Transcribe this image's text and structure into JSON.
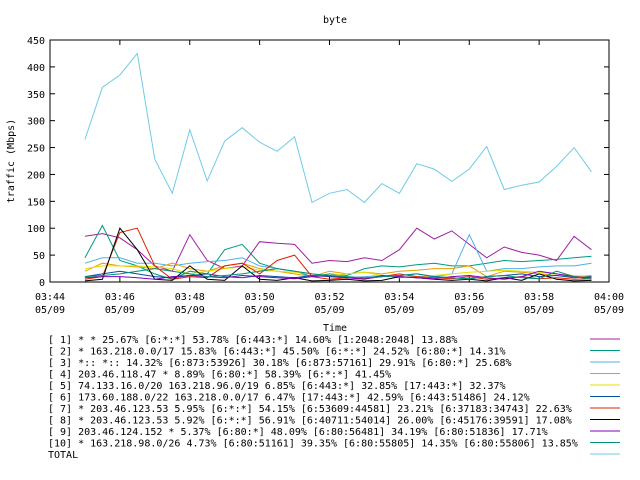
{
  "chart_data": {
    "type": "line",
    "title": "byte",
    "xlabel": "Time",
    "ylabel": "traffic (Mbps)",
    "ylim": [
      0,
      450
    ],
    "yticks": [
      0,
      50,
      100,
      150,
      200,
      250,
      300,
      350,
      400,
      450
    ],
    "grid": false,
    "x": [
      "03:45",
      "03:45:30",
      "03:46",
      "03:46:30",
      "03:47",
      "03:47:30",
      "03:48",
      "03:48:30",
      "03:49",
      "03:49:30",
      "03:50",
      "03:50:30",
      "03:51",
      "03:51:30",
      "03:52",
      "03:52:30",
      "03:53",
      "03:53:30",
      "03:54",
      "03:54:30",
      "03:55",
      "03:55:30",
      "03:56",
      "03:56:30",
      "03:57",
      "03:57:30",
      "03:58",
      "03:58:30",
      "03:59",
      "03:59:30"
    ],
    "xticks": [
      {
        "time": "03:44",
        "date": "05/09"
      },
      {
        "time": "03:46",
        "date": "05/09"
      },
      {
        "time": "03:48",
        "date": "05/09"
      },
      {
        "time": "03:50",
        "date": "05/09"
      },
      {
        "time": "03:52",
        "date": "05/09"
      },
      {
        "time": "03:54",
        "date": "05/09"
      },
      {
        "time": "03:56",
        "date": "05/09"
      },
      {
        "time": "03:58",
        "date": "05/09"
      },
      {
        "time": "04:00",
        "date": "05/09"
      }
    ],
    "series": [
      {
        "name": "[ 1] * * 25.67%  [6:*:*] 53.78% [6:443:*] 14.60% [1:2048:2048] 13.88%",
        "color": "#a020a0",
        "values": [
          85,
          90,
          82,
          60,
          30,
          20,
          88,
          40,
          25,
          30,
          75,
          72,
          70,
          35,
          40,
          38,
          45,
          40,
          60,
          100,
          80,
          95,
          70,
          45,
          65,
          55,
          50,
          40,
          85,
          60
        ]
      },
      {
        "name": "[ 2] * 163.218.0.0/17 15.83%  [6:443:*] 45.50% [6:*:*] 24.52% [6:80:*] 14.31%",
        "color": "#009a80",
        "values": [
          45,
          105,
          40,
          30,
          15,
          5,
          20,
          15,
          60,
          70,
          35,
          25,
          20,
          10,
          15,
          12,
          25,
          30,
          28,
          32,
          35,
          30,
          30,
          35,
          40,
          38,
          40,
          42,
          45,
          48
        ]
      },
      {
        "name": "[ 3] *:: *:: 14.32%  [6:873:53926] 30.18% [6:873:57161] 29.91% [6:80:*] 25.68%",
        "color": "#50b0e8",
        "values": [
          35,
          45,
          45,
          35,
          35,
          30,
          35,
          38,
          40,
          45,
          30,
          25,
          20,
          15,
          10,
          8,
          10,
          12,
          8,
          10,
          10,
          15,
          88,
          20,
          25,
          25,
          28,
          30,
          30,
          35
        ]
      },
      {
        "name": "[ 4] 203.46.118.47 * 8.89%  [6:80:*] 58.39% [6:*:*] 41.45%",
        "color": "#e0a000",
        "values": [
          20,
          35,
          30,
          28,
          25,
          35,
          25,
          20,
          30,
          35,
          25,
          20,
          15,
          10,
          20,
          15,
          18,
          15,
          20,
          22,
          25,
          25,
          30,
          10,
          20,
          18,
          15,
          12,
          10,
          12
        ]
      },
      {
        "name": "[ 5] 74.133.16.0/20 163.218.96.0/19 6.85%  [6:443:*] 32.85% [17:443:*] 32.37%",
        "color": "#e8e000",
        "values": [
          25,
          30,
          30,
          30,
          28,
          25,
          15,
          20,
          25,
          28,
          22,
          20,
          18,
          15,
          12,
          15,
          18,
          12,
          10,
          8,
          12,
          15,
          18,
          20,
          22,
          20,
          18,
          15,
          12,
          10
        ]
      },
      {
        "name": "[ 6] 173.60.188.0/22 163.218.0.0/17 6.47%  [17:443:*] 42.59% [6:443:51486] 24.12%",
        "color": "#0050a0",
        "values": [
          10,
          15,
          20,
          15,
          10,
          8,
          12,
          15,
          10,
          8,
          12,
          10,
          8,
          12,
          10,
          8,
          6,
          10,
          12,
          15,
          10,
          8,
          6,
          10,
          12,
          15,
          10,
          12,
          8,
          10
        ]
      },
      {
        "name": "[ 7] * 203.46.123.53 5.95%  [6:*:*] 54.15% [6:53609:44581] 23.21% [6:37183:34743] 22.63%",
        "color": "#e02000",
        "values": [
          5,
          10,
          92,
          100,
          30,
          5,
          10,
          8,
          30,
          35,
          15,
          40,
          50,
          10,
          5,
          8,
          6,
          10,
          15,
          10,
          8,
          6,
          10,
          5,
          8,
          10,
          6,
          8,
          5,
          6
        ]
      },
      {
        "name": "[ 8] * 203.46.123.53 5.92%  [6:*:*] 56.91% [6:40711:54014] 26.00% [6:45176:39591] 17.08%",
        "color": "#000000",
        "values": [
          2,
          5,
          100,
          60,
          5,
          3,
          30,
          5,
          3,
          30,
          5,
          3,
          8,
          2,
          3,
          5,
          2,
          3,
          10,
          8,
          5,
          3,
          5,
          2,
          8,
          3,
          15,
          5,
          2,
          3
        ]
      },
      {
        "name": "[ 9] 203.46.124.152 * 5.37%  [6:80:*] 48.09% [6:80:56481] 34.19% [6:80:51836] 17.71%",
        "color": "#8000c0",
        "values": [
          8,
          10,
          10,
          8,
          5,
          10,
          12,
          10,
          8,
          12,
          10,
          8,
          6,
          10,
          12,
          8,
          5,
          12,
          10,
          8,
          6,
          10,
          12,
          8,
          5,
          10,
          20,
          15,
          10,
          8
        ]
      },
      {
        "name": "[10] * 163.218.98.0/26 4.73%  [6:80:51161] 39.35% [6:80:55805] 14.35% [6:80:55806] 13.85%",
        "color": "#00907a",
        "values": [
          10,
          12,
          15,
          20,
          25,
          20,
          15,
          10,
          12,
          15,
          20,
          25,
          20,
          15,
          12,
          10,
          8,
          10,
          12,
          15,
          10,
          8,
          6,
          10,
          12,
          8,
          6,
          20,
          10,
          5
        ]
      },
      {
        "name": "TOTAL",
        "color": "#6ecbe8",
        "values": [
          265,
          362,
          385,
          425,
          228,
          165,
          283,
          188,
          262,
          287,
          260,
          243,
          270,
          148,
          165,
          172,
          148,
          183,
          165,
          220,
          210,
          187,
          210,
          252,
          172,
          180,
          186,
          215,
          250,
          205
        ]
      }
    ]
  }
}
